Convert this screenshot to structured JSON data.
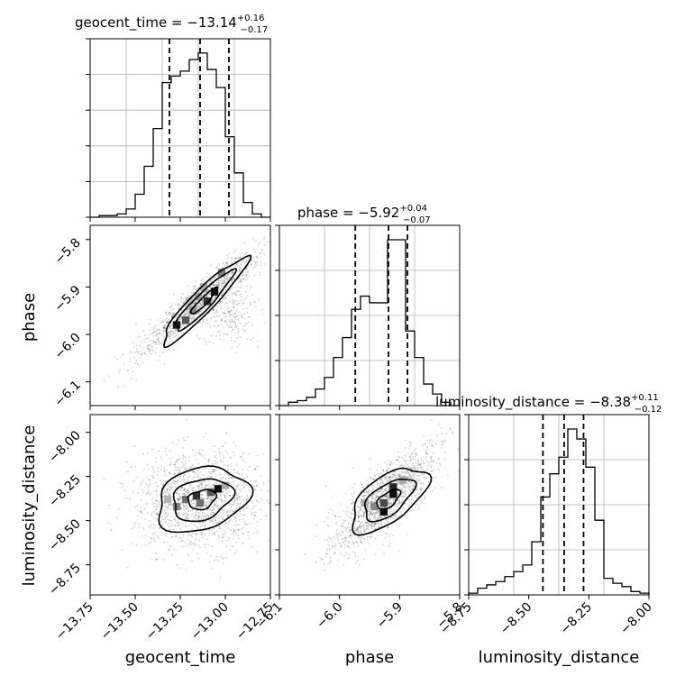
{
  "chart_data": [
    {
      "type": "histogram",
      "name": "geocent_time-marginal",
      "title": {
        "param": "geocent_time",
        "median": "−13.14",
        "plus": "+0.16",
        "minus": "−0.17"
      },
      "xlim": [
        -13.75,
        -12.75
      ],
      "quantiles": [
        -13.31,
        -13.14,
        -12.98
      ],
      "bins": {
        "edges": [
          -13.75,
          -13.7,
          -13.65,
          -13.6,
          -13.55,
          -13.5,
          -13.45,
          -13.4,
          -13.35,
          -13.3,
          -13.25,
          -13.2,
          -13.15,
          -13.1,
          -13.05,
          -13.0,
          -12.95,
          -12.9,
          -12.85,
          -12.8,
          -12.75
        ],
        "counts": [
          0,
          1,
          1,
          2,
          5,
          14,
          31,
          54,
          82,
          86,
          89,
          96,
          100,
          90,
          79,
          49,
          27,
          9,
          2,
          0
        ]
      },
      "xlabel": "",
      "ylabel": ""
    },
    {
      "type": "histogram",
      "name": "phase-marginal",
      "title": {
        "param": "phase",
        "median": "−5.92",
        "plus": "+0.04",
        "minus": "−0.07"
      },
      "xlim": [
        -6.15,
        -5.77
      ],
      "quantiles": [
        -5.99,
        -5.92,
        -5.88
      ],
      "bins": {
        "edges": [
          -6.15,
          -6.131,
          -6.112,
          -6.093,
          -6.074,
          -6.055,
          -6.036,
          -6.017,
          -5.998,
          -5.979,
          -5.96,
          -5.941,
          -5.922,
          -5.903,
          -5.884,
          -5.865,
          -5.846,
          -5.827,
          -5.808,
          -5.789,
          -5.77
        ],
        "counts": [
          0,
          2,
          3,
          5,
          10,
          17,
          29,
          41,
          58,
          66,
          62,
          62,
          100,
          100,
          45,
          29,
          13,
          7,
          2,
          0
        ]
      },
      "xlabel": "",
      "ylabel": ""
    },
    {
      "type": "histogram",
      "name": "luminosity_distance-marginal",
      "title": {
        "param": "luminosity_distance",
        "median": "−8.38",
        "plus": "+0.11",
        "minus": "−0.12"
      },
      "xlim": [
        -8.92,
        -7.9
      ],
      "quantiles": [
        -8.5,
        -8.38,
        -8.27
      ],
      "bins": {
        "edges": [
          -8.92,
          -8.869,
          -8.818,
          -8.767,
          -8.716,
          -8.665,
          -8.614,
          -8.563,
          -8.512,
          -8.461,
          -8.41,
          -8.359,
          -8.308,
          -8.257,
          -8.206,
          -8.155,
          -8.104,
          -8.053,
          -8.002,
          -7.951,
          -7.9
        ],
        "counts": [
          1,
          4,
          6,
          8,
          11,
          14,
          18,
          32,
          59,
          73,
          83,
          100,
          94,
          77,
          45,
          10,
          7,
          5,
          2,
          1
        ]
      },
      "xlabel": "luminosity_distance",
      "ylabel": ""
    },
    {
      "type": "scatter",
      "name": "phase-vs-geocent_time",
      "xlim": [
        -13.75,
        -12.75
      ],
      "ylim": [
        -6.15,
        -5.77
      ],
      "xlabel": "",
      "ylabel": "phase",
      "density_cells": [
        {
          "x": -13.15,
          "y": -5.92,
          "level": 0.4
        },
        {
          "x": -13.1,
          "y": -5.93,
          "level": 0.85
        },
        {
          "x": -13.06,
          "y": -5.91,
          "level": 1.0
        },
        {
          "x": -13.18,
          "y": -5.95,
          "level": 0.5
        },
        {
          "x": -13.22,
          "y": -5.97,
          "level": 0.7
        },
        {
          "x": -13.27,
          "y": -5.98,
          "level": 0.95
        },
        {
          "x": -13.02,
          "y": -5.87,
          "level": 0.55
        },
        {
          "x": -13.12,
          "y": -5.9,
          "level": 0.35
        },
        {
          "x": -13.2,
          "y": -5.93,
          "level": 0.3
        }
      ]
    },
    {
      "type": "scatter",
      "name": "luminosity_distance-vs-geocent_time",
      "xlim": [
        -13.75,
        -12.75
      ],
      "ylim": [
        -8.92,
        -7.9
      ],
      "xlabel": "geocent_time",
      "ylabel": "luminosity_distance",
      "density_cells": [
        {
          "x": -13.22,
          "y": -8.38,
          "level": 0.6
        },
        {
          "x": -13.16,
          "y": -8.36,
          "level": 0.85
        },
        {
          "x": -13.08,
          "y": -8.34,
          "level": 0.7
        },
        {
          "x": -13.04,
          "y": -8.32,
          "level": 1.0
        },
        {
          "x": -13.27,
          "y": -8.42,
          "level": 0.5
        },
        {
          "x": -13.14,
          "y": -8.4,
          "level": 0.6
        },
        {
          "x": -13.0,
          "y": -8.3,
          "level": 0.35
        },
        {
          "x": -13.32,
          "y": -8.38,
          "level": 0.3
        }
      ]
    },
    {
      "type": "scatter",
      "name": "luminosity_distance-vs-phase",
      "xlim": [
        -6.15,
        -5.77
      ],
      "ylim": [
        -8.92,
        -7.9
      ],
      "xlabel": "phase",
      "ylabel": "",
      "density_cells": [
        {
          "x": -5.91,
          "y": -8.31,
          "level": 0.9
        },
        {
          "x": -5.91,
          "y": -8.35,
          "level": 1.0
        },
        {
          "x": -5.93,
          "y": -8.4,
          "level": 0.75
        },
        {
          "x": -5.93,
          "y": -8.45,
          "level": 1.0
        },
        {
          "x": -5.95,
          "y": -8.42,
          "level": 0.5
        },
        {
          "x": -5.97,
          "y": -8.4,
          "level": 0.35
        },
        {
          "x": -5.89,
          "y": -8.27,
          "level": 0.35
        }
      ]
    }
  ],
  "ticks": {
    "geocent_time": [
      "−13.75",
      "−13.50",
      "−13.25",
      "−13.00",
      "−12.75"
    ],
    "phase": [
      "−6.1",
      "−6.0",
      "−5.9",
      "−5.8"
    ],
    "luminosity_distance_y": [
      "−8.00",
      "−8.25",
      "−8.50",
      "−8.75"
    ],
    "luminosity_distance_x": [
      "−8.75",
      "−8.50",
      "−8.25",
      "−8.00"
    ]
  },
  "colors": {
    "contour": "#000000",
    "hist": "#000000",
    "grid": "#b0b0b0",
    "points": "#000000"
  }
}
